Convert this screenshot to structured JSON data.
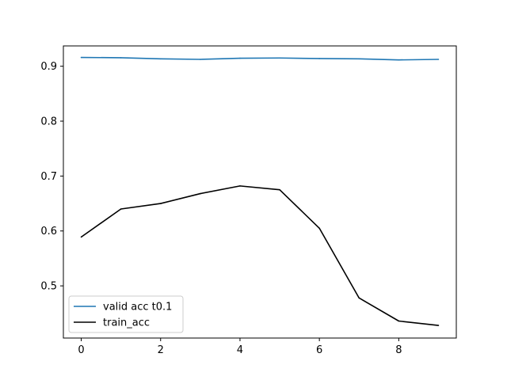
{
  "chart_data": {
    "type": "line",
    "title": "",
    "xlabel": "",
    "ylabel": "",
    "xlim": [
      -0.45,
      9.45
    ],
    "ylim": [
      0.405,
      0.937
    ],
    "x_ticks": [
      0,
      2,
      4,
      6,
      8
    ],
    "y_ticks": [
      0.5,
      0.6,
      0.7,
      0.8,
      0.9
    ],
    "x_tick_labels": [
      "0",
      "2",
      "4",
      "6",
      "8"
    ],
    "y_tick_labels": [
      "0.5",
      "0.6",
      "0.7",
      "0.8",
      "0.9"
    ],
    "grid": false,
    "legend_position": "lower-left",
    "x": [
      0,
      1,
      2,
      3,
      4,
      5,
      6,
      7,
      8,
      9
    ],
    "series": [
      {
        "name": "valid acc t0.1",
        "color": "#1f77b4",
        "values": [
          0.916,
          0.9155,
          0.9135,
          0.9125,
          0.9145,
          0.915,
          0.914,
          0.9135,
          0.9115,
          0.9125
        ]
      },
      {
        "name": "train_acc",
        "color": "#000000",
        "values": [
          0.589,
          0.64,
          0.65,
          0.668,
          0.682,
          0.675,
          0.605,
          0.478,
          0.436,
          0.428
        ]
      }
    ]
  }
}
